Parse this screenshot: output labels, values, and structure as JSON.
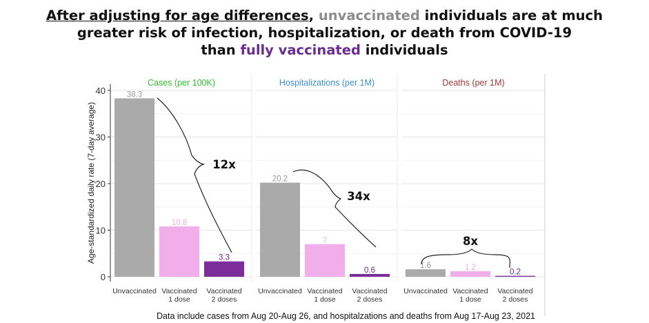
{
  "title": {
    "part1": "After adjusting for age differences",
    "part2": ", ",
    "part3": "unvaccinated",
    "part4": " individuals are at much",
    "line2": "greater risk of infection, hospitalization, or death from COVID-19",
    "part5": "than ",
    "part6": "fully vaccinated",
    "part7": " individuals"
  },
  "colors": {
    "unvaccinated": "#aaaaaa",
    "vaccinated_1_dose": "#f2aeea",
    "vaccinated_2_doses": "#7b2d9a",
    "cases_title": "#2fbf2f",
    "hosp_title": "#3d8fd4",
    "deaths_title": "#a33a3a"
  },
  "footnote": "Data include cases from Aug 20-Aug 26, and hospitalzations and deaths from Aug 17-Aug 23, 2021",
  "chart_data": {
    "type": "bar",
    "ylabel": "Age-standardized daily rate (7-day average)",
    "ylim": [
      0,
      40
    ],
    "yticks": [
      0,
      10,
      20,
      30,
      40
    ],
    "grid": true,
    "categories": [
      "Unvaccinated",
      "Vaccinated\n1 dose",
      "Vaccinated\n2 doses"
    ],
    "panels": [
      {
        "title": "Cases (per 100K)",
        "values": [
          38.3,
          10.8,
          3.3
        ],
        "labels": [
          "38.3",
          "10.8",
          "3.3"
        ],
        "ratio": "12x"
      },
      {
        "title": "Hospitalizations (per 1M)",
        "values": [
          20.2,
          7,
          0.6
        ],
        "labels": [
          "20.2",
          "7",
          "0.6"
        ],
        "ratio": "34x"
      },
      {
        "title": "Deaths (per 1M)",
        "values": [
          1.6,
          1.2,
          0.2
        ],
        "labels": [
          "1.6",
          "1.2",
          "0.2"
        ],
        "ratio": "8x"
      }
    ]
  }
}
